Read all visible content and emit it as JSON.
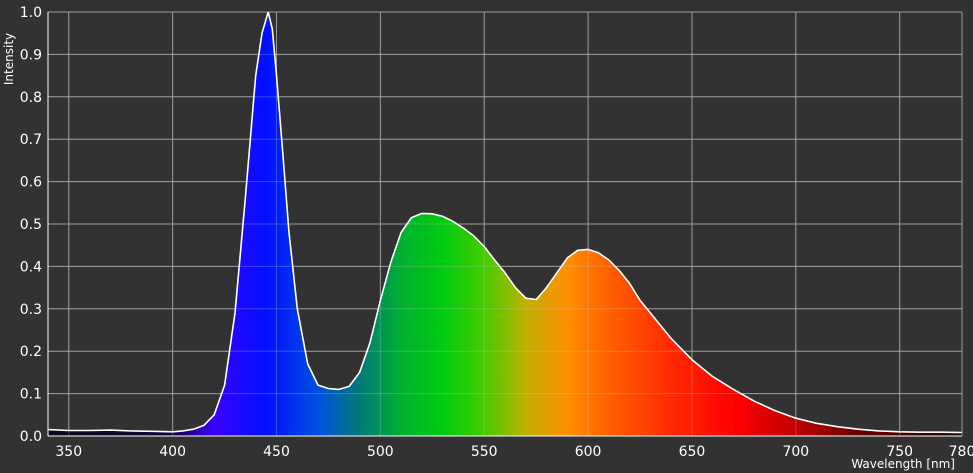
{
  "chart_data": {
    "type": "area",
    "title": "",
    "xlabel": "Wavelength [nm]",
    "ylabel": "Intensity",
    "xlim": [
      340,
      780
    ],
    "ylim": [
      0,
      1.0
    ],
    "grid": true,
    "x_ticks": [
      350,
      400,
      450,
      500,
      550,
      600,
      650,
      700,
      750,
      780
    ],
    "y_ticks": [
      0.0,
      0.1,
      0.2,
      0.3,
      0.4,
      0.5,
      0.6,
      0.7,
      0.8,
      0.9,
      1.0
    ],
    "x_tick_labels": [
      "350",
      "400",
      "450",
      "500",
      "550",
      "600",
      "650",
      "700",
      "750",
      "780"
    ],
    "y_tick_labels": [
      "0.0",
      "0.1",
      "0.2",
      "0.3",
      "0.4",
      "0.5",
      "0.6",
      "0.7",
      "0.8",
      "0.9",
      "1.0"
    ],
    "series": [
      {
        "x": [
          340,
          350,
          360,
          370,
          380,
          390,
          400,
          405,
          410,
          415,
          420,
          425,
          430,
          435,
          440,
          443,
          446,
          448,
          450,
          453,
          456,
          460,
          465,
          470,
          475,
          480,
          485,
          490,
          495,
          500,
          505,
          510,
          515,
          520,
          525,
          530,
          535,
          540,
          545,
          550,
          555,
          560,
          565,
          570,
          575,
          580,
          585,
          590,
          595,
          600,
          605,
          610,
          615,
          620,
          625,
          630,
          640,
          650,
          660,
          670,
          680,
          690,
          700,
          710,
          720,
          730,
          740,
          750,
          760,
          770,
          780
        ],
        "values": [
          0.015,
          0.013,
          0.013,
          0.014,
          0.012,
          0.011,
          0.01,
          0.012,
          0.016,
          0.025,
          0.05,
          0.12,
          0.29,
          0.56,
          0.85,
          0.95,
          1.0,
          0.96,
          0.85,
          0.67,
          0.48,
          0.3,
          0.17,
          0.12,
          0.112,
          0.11,
          0.117,
          0.15,
          0.22,
          0.32,
          0.41,
          0.48,
          0.515,
          0.525,
          0.524,
          0.518,
          0.506,
          0.49,
          0.472,
          0.447,
          0.415,
          0.385,
          0.35,
          0.325,
          0.322,
          0.35,
          0.385,
          0.42,
          0.438,
          0.44,
          0.432,
          0.415,
          0.39,
          0.36,
          0.32,
          0.29,
          0.23,
          0.18,
          0.14,
          0.11,
          0.082,
          0.06,
          0.042,
          0.03,
          0.022,
          0.016,
          0.012,
          0.01,
          0.009,
          0.009,
          0.008
        ]
      }
    ]
  }
}
